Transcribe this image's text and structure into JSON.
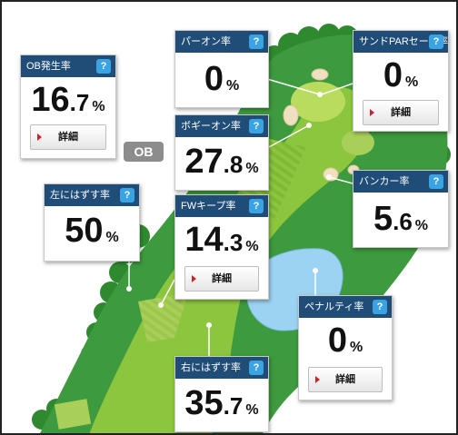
{
  "colors": {
    "header_bg": "#1f4d78",
    "help_bg": "#3aa3e3",
    "rough": "#3e9a3e",
    "fairway": "#8cc63f",
    "green": "#b9db5e",
    "bunker": "#efe0bf",
    "water": "#9dd3f2",
    "ob_badge": "#8c8c8c",
    "detail_arrow": "#d01f2a"
  },
  "help_label": "?",
  "ob_badge": "OB",
  "cards": {
    "ob_rate": {
      "label": "OB発生率",
      "int": "16",
      "dec": ".7",
      "unit": "%",
      "detail": "詳細"
    },
    "par_on": {
      "label": "パーオン率",
      "int": "0",
      "dec": "",
      "unit": "%"
    },
    "sand_par_save": {
      "label": "サンドPARセーブ率",
      "int": "0",
      "dec": "",
      "unit": "%",
      "detail": "詳細"
    },
    "bogey_on": {
      "label": "ボギーオン率",
      "int": "27",
      "dec": ".8",
      "unit": "%"
    },
    "left_miss": {
      "label": "左にはずす率",
      "int": "50",
      "dec": "",
      "unit": "%"
    },
    "fw_keep": {
      "label": "FWキープ率",
      "int": "14",
      "dec": ".3",
      "unit": "%",
      "detail": "詳細"
    },
    "bunker": {
      "label": "バンカー率",
      "int": "5",
      "dec": ".6",
      "unit": "%"
    },
    "penalty": {
      "label": "ペナルティ率",
      "int": "0",
      "dec": "",
      "unit": "%",
      "detail": "詳細"
    },
    "right_miss": {
      "label": "右にはずす率",
      "int": "35",
      "dec": ".7",
      "unit": "%"
    }
  }
}
